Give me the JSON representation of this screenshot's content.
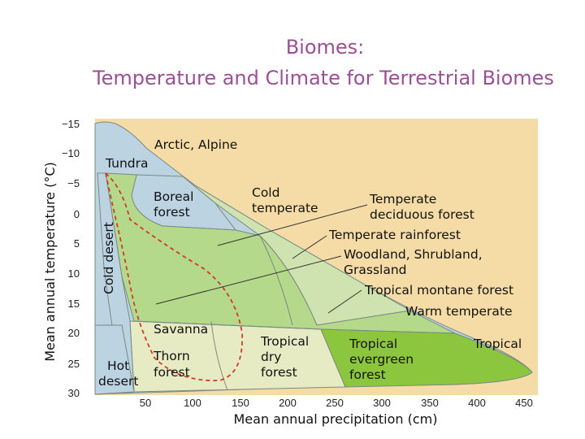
{
  "title": "Biomes:",
  "subtitle": "Temperature and Climate for Terrestrial Biomes",
  "y_axis": {
    "label": "Mean annual temperature (°C)",
    "ticks": [
      "−15",
      "−10",
      "−5",
      "0",
      "5",
      "10",
      "15",
      "20",
      "25",
      "30"
    ]
  },
  "x_axis": {
    "label": "Mean annual precipitation (cm)",
    "ticks": [
      "50",
      "100",
      "150",
      "200",
      "250",
      "300",
      "350",
      "400",
      "450"
    ]
  },
  "regions": {
    "arctic_alpine": "Arctic, Alpine",
    "tundra": "Tundra",
    "boreal_1": "Boreal",
    "boreal_2": "forest",
    "cold_temperate_1": "Cold",
    "cold_temperate_2": "temperate",
    "cold_desert": "Cold desert",
    "savanna": "Savanna",
    "thorn_1": "Thorn",
    "thorn_2": "forest",
    "hot_desert_1": "Hot",
    "hot_desert_2": "desert",
    "tdry_1": "Tropical",
    "tdry_2": "dry",
    "tdry_3": "forest",
    "tever_1": "Tropical",
    "tever_2": "evergreen",
    "tever_3": "forest",
    "tropical": "Tropical"
  },
  "callouts": {
    "temperate_deciduous_1": "Temperate",
    "temperate_deciduous_2": "deciduous forest",
    "temperate_rainforest": "Temperate rainforest",
    "woodland_1": "Woodland, Shrubland,",
    "woodland_2": "Grassland",
    "tropical_montane": "Tropical montane forest",
    "warm_temperate": "Warm temperate"
  },
  "colors": {
    "title": "#9b4f96",
    "background": "#f5dca6",
    "blue": "#bcd3e2",
    "pale_green": "#cfe3b0",
    "light_green": "#b4d98a",
    "pale_yellow": "#e7ebc4",
    "bright_green": "#8cc63f",
    "dash": "#d23a2a"
  }
}
